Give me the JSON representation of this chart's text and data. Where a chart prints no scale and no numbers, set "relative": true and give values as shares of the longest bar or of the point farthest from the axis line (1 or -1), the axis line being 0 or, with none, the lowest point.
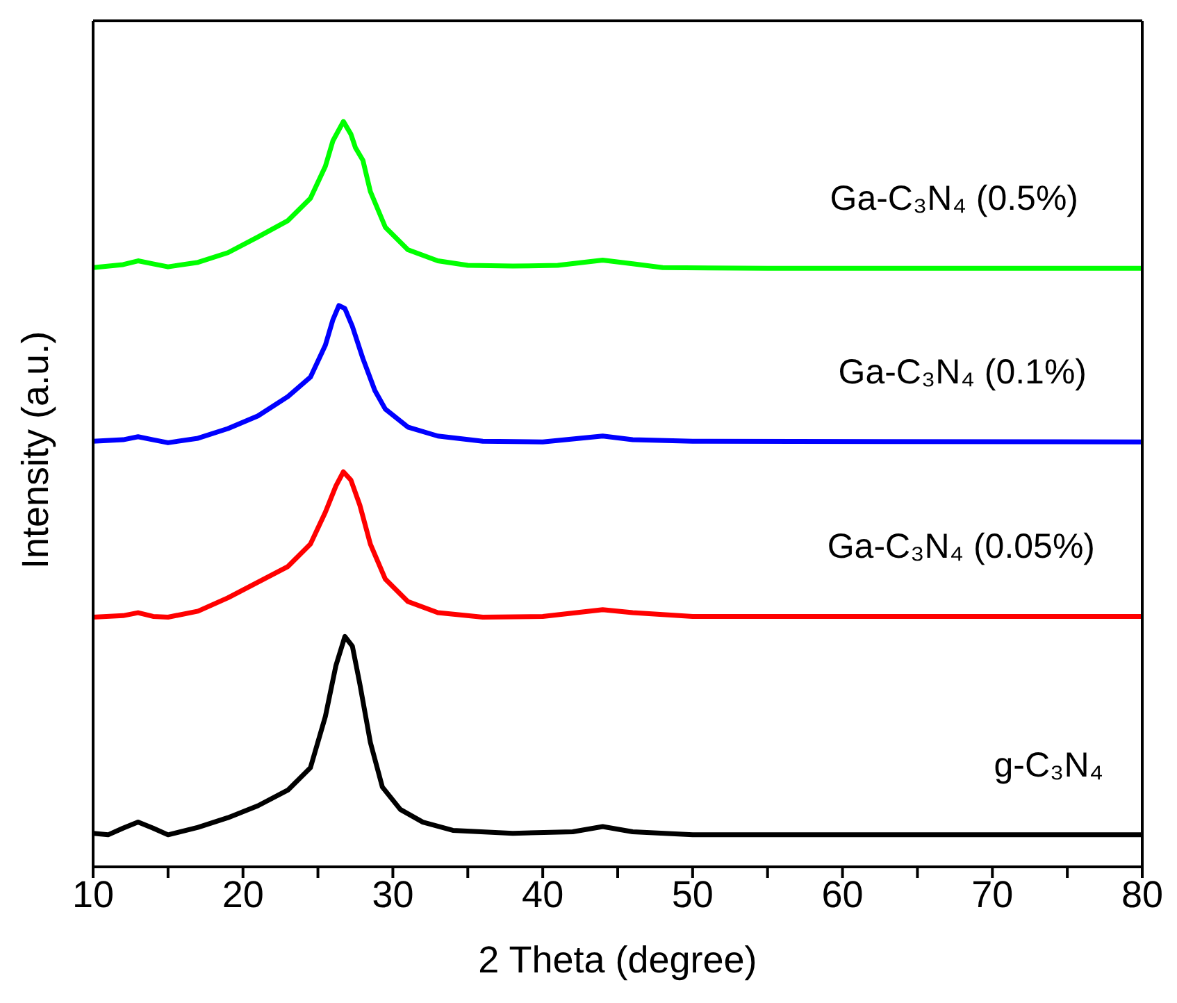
{
  "chart_data": {
    "type": "line",
    "relative": true,
    "xlabel": "2 Theta (degree)",
    "ylabel": "Intensity (a.u.)",
    "xlim": [
      10,
      80
    ],
    "xticks": [
      10,
      {
        "value": 15,
        "label": null
      },
      20,
      {
        "value": 25,
        "label": null
      },
      30,
      {
        "value": 35,
        "label": null
      },
      40,
      {
        "value": 45,
        "label": null
      },
      50,
      {
        "value": 55,
        "label": null
      },
      60,
      {
        "value": 65,
        "label": null
      },
      70,
      {
        "value": 75,
        "label": null
      },
      80
    ],
    "legend": false,
    "marker": "none",
    "line_style": "solid",
    "series": [
      {
        "name": "g-C₃N₄",
        "color": "#000000",
        "x": [
          10,
          11,
          12,
          13,
          14,
          15,
          17,
          19,
          21,
          23,
          24.5,
          25.5,
          26.2,
          26.8,
          27.3,
          27.8,
          28.5,
          29.3,
          30.5,
          32,
          34,
          38,
          42,
          44,
          46,
          50,
          80
        ],
        "values": [
          0.045,
          0.043,
          0.052,
          0.06,
          0.052,
          0.043,
          0.053,
          0.066,
          0.082,
          0.103,
          0.133,
          0.202,
          0.27,
          0.309,
          0.296,
          0.245,
          0.167,
          0.107,
          0.077,
          0.06,
          0.049,
          0.045,
          0.047,
          0.054,
          0.047,
          0.043,
          0.043
        ]
      },
      {
        "name": "Ga-C₃N₄ (0.05%)",
        "color": "#ff0000",
        "x": [
          10,
          12,
          13,
          14,
          15,
          17,
          19,
          21,
          23,
          24.5,
          25.5,
          26.2,
          26.7,
          27.2,
          27.8,
          28.5,
          29.5,
          31,
          33,
          36,
          40,
          44,
          46,
          50,
          80
        ],
        "values": [
          0.335,
          0.337,
          0.341,
          0.336,
          0.335,
          0.343,
          0.361,
          0.382,
          0.403,
          0.433,
          0.476,
          0.511,
          0.53,
          0.519,
          0.485,
          0.433,
          0.386,
          0.356,
          0.341,
          0.335,
          0.336,
          0.345,
          0.341,
          0.336,
          0.336
        ]
      },
      {
        "name": "Ga-C₃N₄ (0.1%)",
        "color": "#0000ff",
        "x": [
          10,
          12,
          13,
          14,
          15,
          17,
          19,
          21,
          23,
          24.5,
          25.5,
          26,
          26.4,
          26.8,
          27.3,
          28,
          28.8,
          29.5,
          31,
          33,
          36,
          40,
          44,
          46,
          50,
          80
        ],
        "values": [
          0.571,
          0.573,
          0.577,
          0.573,
          0.569,
          0.575,
          0.588,
          0.605,
          0.631,
          0.657,
          0.7,
          0.734,
          0.753,
          0.749,
          0.725,
          0.682,
          0.639,
          0.614,
          0.59,
          0.578,
          0.571,
          0.57,
          0.578,
          0.573,
          0.571,
          0.57
        ]
      },
      {
        "name": "Ga-C₃N₄ (0.5%)",
        "color": "#00ff00",
        "x": [
          10,
          12,
          13,
          14,
          15,
          17,
          19,
          21,
          23,
          24.5,
          25.5,
          26,
          26.7,
          27.2,
          27.5,
          28,
          28.5,
          29.5,
          31,
          33,
          35,
          38,
          41,
          44,
          46,
          48,
          55,
          80
        ],
        "values": [
          0.804,
          0.808,
          0.813,
          0.809,
          0.805,
          0.811,
          0.824,
          0.845,
          0.867,
          0.897,
          0.94,
          0.974,
          1,
          0.983,
          0.965,
          0.948,
          0.906,
          0.858,
          0.828,
          0.813,
          0.807,
          0.806,
          0.807,
          0.814,
          0.809,
          0.804,
          0.803,
          0.803
        ]
      }
    ]
  }
}
